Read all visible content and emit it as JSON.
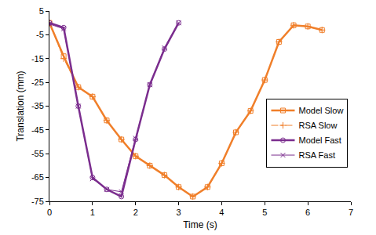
{
  "chart_data": {
    "type": "line",
    "x_label": "Time (s)",
    "y_label": "Translation (mm)",
    "xlim": [
      0,
      7
    ],
    "xticks": [
      0,
      1,
      2,
      3,
      4,
      5,
      6,
      7
    ],
    "ylim": [
      -75,
      5
    ],
    "yticks": [
      -75,
      -65,
      -55,
      -45,
      -35,
      -25,
      -15,
      -5,
      5
    ],
    "grid": false,
    "legend": "right",
    "series": [
      {
        "name": "Model Slow",
        "color": "#f07f2a",
        "marker": "square",
        "line_style": "solid",
        "x": [
          0,
          0.33,
          0.67,
          1,
          1.33,
          1.67,
          2,
          2.33,
          2.67,
          3,
          3.33,
          3.67,
          4,
          4.33,
          4.67,
          5,
          5.33,
          5.67,
          6,
          6.33
        ],
        "values": [
          0,
          -14,
          -27,
          -31,
          -41,
          -49,
          -56,
          -60,
          -64,
          -69,
          -73,
          -69,
          -59,
          -46,
          -37,
          -24,
          -8,
          -1,
          -1.5,
          -3
        ]
      },
      {
        "name": "RSA Slow",
        "color": "#f07f2a",
        "marker": "cross",
        "line_style": "dashdot",
        "x": [
          0,
          0.33,
          0.67,
          1,
          1.33,
          1.67,
          2,
          2.33,
          2.67,
          3,
          3.33,
          3.67,
          4,
          4.33,
          4.67,
          5,
          5.33,
          5.67,
          6,
          6.33
        ],
        "values": [
          0,
          -15,
          -27,
          -31,
          -41,
          -49,
          -56,
          -60,
          -64,
          -69,
          -73,
          -69,
          -59,
          -46,
          -37,
          -24,
          -8,
          -1,
          -1.5,
          -3
        ]
      },
      {
        "name": "Model Fast",
        "color": "#7b2d8e",
        "marker": "circle",
        "line_style": "solid",
        "x": [
          0,
          0.33,
          0.67,
          1,
          1.33,
          1.67,
          2,
          2.33,
          2.67,
          3
        ],
        "values": [
          0,
          -2,
          -35,
          -65,
          -70,
          -73,
          -49,
          -26,
          -11,
          0
        ]
      },
      {
        "name": "RSA Fast",
        "color": "#7b2d8e",
        "marker": "x",
        "line_style": "solid",
        "x": [
          0,
          0.33,
          0.67,
          1,
          1.33,
          1.67,
          2,
          2.33,
          2.67,
          3
        ],
        "values": [
          -0.5,
          -2.5,
          -35,
          -65.5,
          -70,
          -71,
          -48.5,
          -26,
          -10.5,
          0
        ]
      }
    ]
  }
}
